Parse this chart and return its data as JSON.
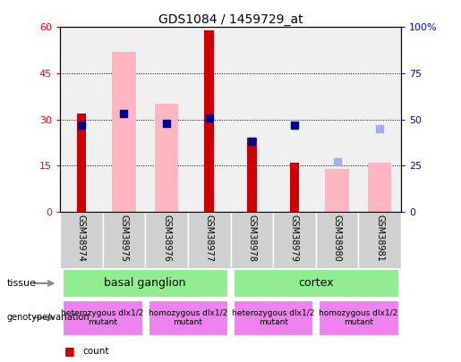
{
  "title": "GDS1084 / 1459729_at",
  "samples": [
    "GSM38974",
    "GSM38975",
    "GSM38976",
    "GSM38977",
    "GSM38978",
    "GSM38979",
    "GSM38980",
    "GSM38981"
  ],
  "count_values": [
    32,
    0,
    0,
    59,
    24,
    16,
    0,
    0
  ],
  "pink_bar_values": [
    0,
    52,
    35,
    0,
    0,
    0,
    14,
    16
  ],
  "dark_blue_pct": [
    47,
    53,
    48,
    51,
    38,
    47,
    0,
    0
  ],
  "light_blue_pct": [
    0,
    0,
    0,
    0,
    0,
    0,
    27,
    45
  ],
  "ylim_left": [
    0,
    60
  ],
  "ylim_right": [
    0,
    100
  ],
  "yticks_left": [
    0,
    15,
    30,
    45,
    60
  ],
  "ytick_labels_right": [
    "0",
    "25",
    "50",
    "75",
    "100%"
  ],
  "count_color": "#CC0000",
  "pink_color": "#FFB6C1",
  "dark_blue_color": "#00008B",
  "light_blue_color": "#AAAAEE",
  "bg_color": "#FFFFFF",
  "plot_bg_color": "#F0F0F0",
  "sample_label_bg": "#D0D0D0",
  "tissue_color": "#90EE90",
  "geno_color_light": "#EE82EE",
  "geno_color_dark": "#CC44CC"
}
